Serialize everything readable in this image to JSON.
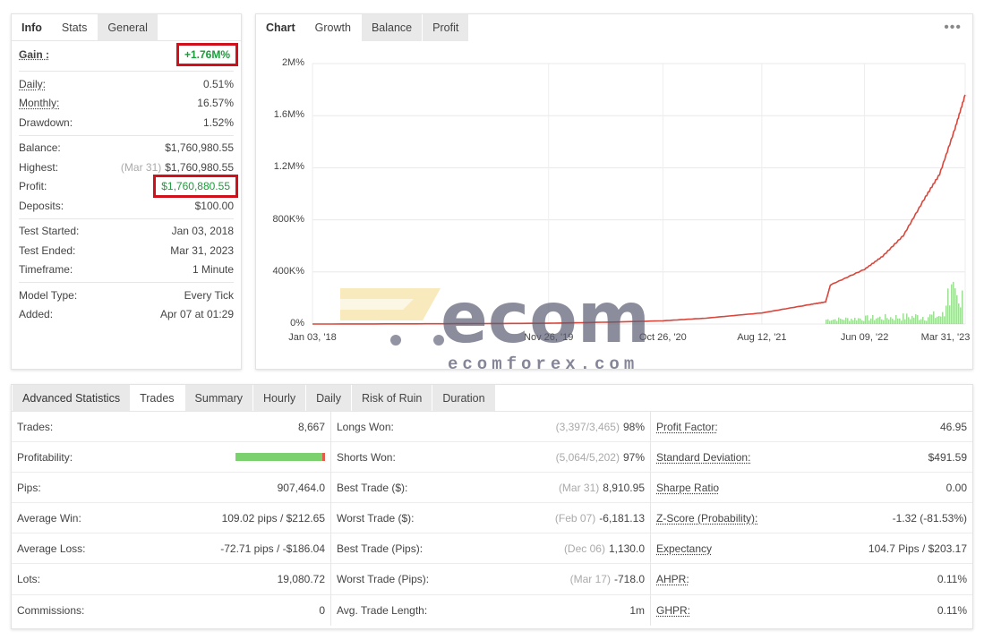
{
  "info_panel": {
    "tabs": [
      "Info",
      "Stats",
      "General"
    ],
    "gain": {
      "label": "Gain :",
      "value": "+1.76M%"
    },
    "group1": [
      {
        "label": "Daily:",
        "value": "0.51%"
      },
      {
        "label": "Monthly:",
        "value": "16.57%"
      },
      {
        "label": "Drawdown:",
        "value": "1.52%"
      }
    ],
    "balance": {
      "label": "Balance:",
      "value": "$1,760,980.55"
    },
    "highest": {
      "label": "Highest:",
      "date": "(Mar 31)",
      "value": "$1,760,980.55"
    },
    "profit": {
      "label": "Profit:",
      "value": "$1,760,880.55"
    },
    "deposits": {
      "label": "Deposits:",
      "value": "$100.00"
    },
    "group3": [
      {
        "label": "Test Started:",
        "value": "Jan 03, 2018"
      },
      {
        "label": "Test Ended:",
        "value": "Mar 31, 2023"
      },
      {
        "label": "Timeframe:",
        "value": "1 Minute"
      }
    ],
    "group4": [
      {
        "label": "Model Type:",
        "value": "Every Tick"
      },
      {
        "label": "Added:",
        "value": "Apr 07 at 01:29"
      }
    ]
  },
  "chart_panel": {
    "tabs": [
      "Chart",
      "Growth",
      "Balance",
      "Profit"
    ],
    "menu_icon": "more-dots-icon"
  },
  "chart_data": {
    "type": "line",
    "x_ticks": [
      "Jan 03, '18",
      "Nov 26, '19",
      "Oct 26, '20",
      "Aug 12, '21",
      "Jun 09, '22",
      "Mar 31, '23"
    ],
    "y_ticks": [
      "0%",
      "400K%",
      "800K%",
      "1.2M%",
      "1.6M%",
      "2M%"
    ],
    "ylim": [
      0,
      2000000
    ],
    "series": [
      {
        "color": "#d9463b",
        "type": "line",
        "x": [
          "2018-01-03",
          "2019-01-01",
          "2019-11-26",
          "2020-06-01",
          "2020-10-26",
          "2021-03-01",
          "2021-08-12",
          "2022-01-01",
          "2022-02-15",
          "2022-03-01",
          "2022-06-09",
          "2022-08-01",
          "2022-10-01",
          "2022-12-01",
          "2023-01-15",
          "2023-03-01",
          "2023-03-31"
        ],
        "values": [
          0,
          2000,
          6000,
          15000,
          25000,
          45000,
          85000,
          150000,
          170000,
          300000,
          420000,
          520000,
          680000,
          960000,
          1150000,
          1500000,
          1760000
        ]
      },
      {
        "color": "#7bd16e",
        "type": "bar",
        "note_label": "",
        "values_scale": "small"
      }
    ],
    "grid": true
  },
  "watermark": {
    "brand": "ecomforex.com"
  },
  "stats_panel": {
    "tabs": [
      "Advanced Statistics",
      "Trades",
      "Summary",
      "Hourly",
      "Daily",
      "Risk of Ruin",
      "Duration"
    ],
    "col1": [
      {
        "label": "Trades:",
        "value": "8,667"
      },
      {
        "label": "Profitability:",
        "value": "",
        "bar_win_fraction": 0.98
      },
      {
        "label": "Pips:",
        "value": "907,464.0"
      },
      {
        "label": "Average Win:",
        "value": "109.02 pips / $212.65"
      },
      {
        "label": "Average Loss:",
        "value": "-72.71 pips / -$186.04"
      },
      {
        "label": "Lots:",
        "value": "19,080.72"
      },
      {
        "label": "Commissions:",
        "value": "0"
      }
    ],
    "col2": [
      {
        "label": "Longs Won:",
        "sub": "(3,397/3,465)",
        "value": "98%"
      },
      {
        "label": "Shorts Won:",
        "sub": "(5,064/5,202)",
        "value": "97%"
      },
      {
        "label": "Best Trade ($):",
        "sub": "(Mar 31)",
        "value": "8,910.95"
      },
      {
        "label": "Worst Trade ($):",
        "sub": "(Feb 07)",
        "value": "-6,181.13"
      },
      {
        "label": "Best Trade (Pips):",
        "sub": "(Dec 06)",
        "value": "1,130.0"
      },
      {
        "label": "Worst Trade (Pips):",
        "sub": "(Mar 17)",
        "value": "-718.0"
      },
      {
        "label": "Avg. Trade Length:",
        "sub": "",
        "value": "1m"
      }
    ],
    "col3": [
      {
        "label": "Profit Factor:",
        "value": "46.95"
      },
      {
        "label": "Standard Deviation:",
        "value": "$491.59"
      },
      {
        "label": "Sharpe Ratio",
        "value": "0.00"
      },
      {
        "label": "Z-Score (Probability):",
        "value": "-1.32 (-81.53%)"
      },
      {
        "label": "Expectancy",
        "value": "104.7 Pips / $203.17"
      },
      {
        "label": "AHPR:",
        "value": "0.11%"
      },
      {
        "label": "GHPR:",
        "value": "0.11%"
      }
    ]
  }
}
